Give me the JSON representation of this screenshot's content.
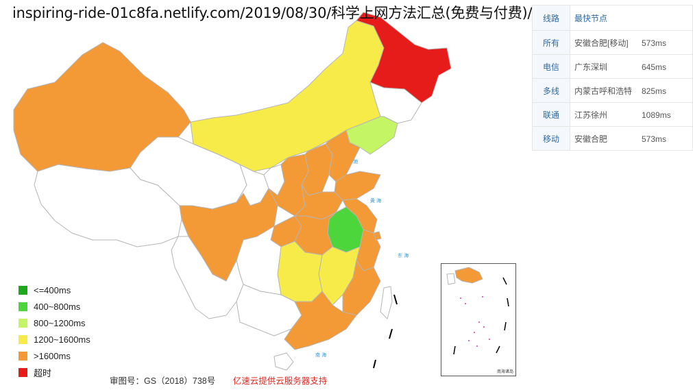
{
  "page": {
    "url_title": "inspiring-ride-01c8fa.netlify.com/2019/08/30/科学上网方法汇总(免费与付费)/"
  },
  "legend": {
    "items": [
      {
        "label": "<=400ms",
        "color": "#1ea81e"
      },
      {
        "label": "400~800ms",
        "color": "#4cd63c"
      },
      {
        "label": "800~1200ms",
        "color": "#c3f564"
      },
      {
        "label": "1200~1600ms",
        "color": "#f7eb4a"
      },
      {
        "label": ">1600ms",
        "color": "#f39a36"
      },
      {
        "label": "超时",
        "color": "#e51c19"
      }
    ]
  },
  "footer": {
    "approval": "审图号：GS（2018）738号",
    "sponsor": "亿速云提供云服务器支持"
  },
  "results_table": {
    "header": {
      "line": "线路",
      "node": "最快节点"
    },
    "rows": [
      {
        "line": "所有",
        "city": "安徽合肥[移动]",
        "ms": "573ms"
      },
      {
        "line": "电信",
        "city": "广东深圳",
        "ms": "645ms"
      },
      {
        "line": "多线",
        "city": "内蒙古呼和浩特",
        "ms": "825ms"
      },
      {
        "line": "联通",
        "city": "江苏徐州",
        "ms": "1089ms"
      },
      {
        "line": "移动",
        "city": "安徽合肥",
        "ms": "573ms"
      }
    ]
  },
  "inset": {
    "label": "南海诸岛"
  },
  "colors": {
    "orange": "#f39a36",
    "yellow": "#f7eb4a",
    "red": "#e51c19",
    "green": "#4cd63c",
    "light_green": "#c3f564",
    "white": "#ffffff",
    "border": "#b5b5b5",
    "sea_label": "#2c9ad9"
  }
}
